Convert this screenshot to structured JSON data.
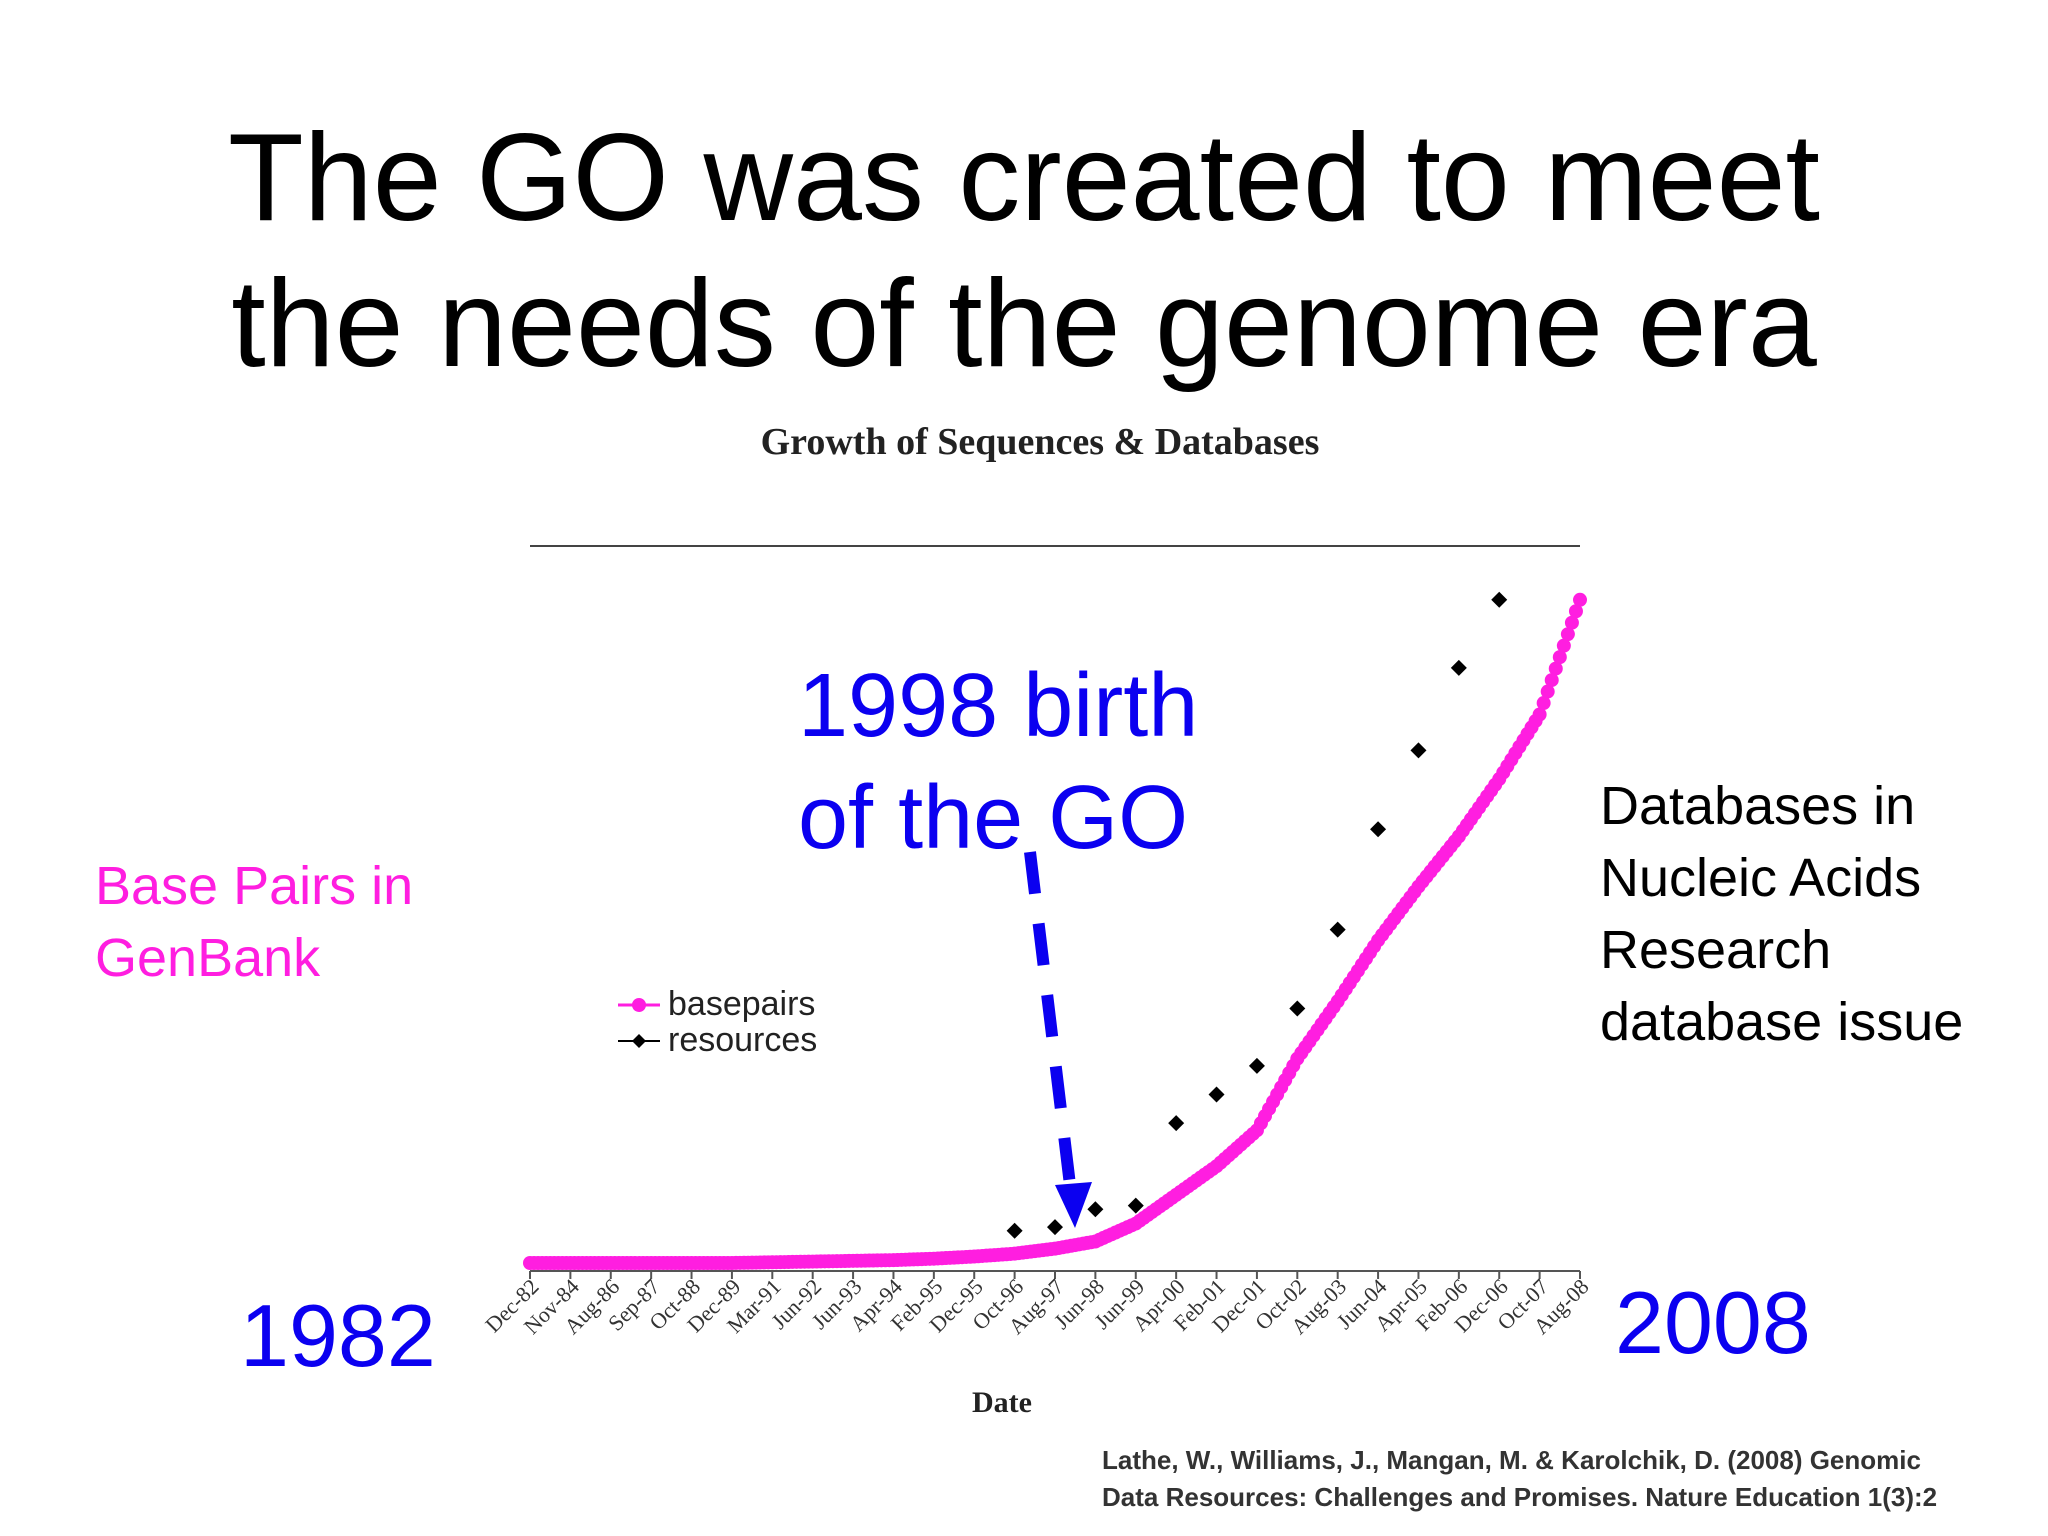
{
  "slide": {
    "title_lines": [
      "The GO was created to meet",
      "the needs of the genome era"
    ],
    "citation_lines": [
      "Lathe, W., Williams, J., Mangan, M. & Karolchik, D. (2008) Genomic",
      "Data Resources: Challenges and Promises. Nature Education 1(3):2"
    ]
  },
  "annotations": {
    "basepairs_note": [
      "Base Pairs in",
      "GenBank"
    ],
    "databases_note": [
      "Databases in",
      "Nucleic Acids",
      "Research",
      "database issue"
    ],
    "birth_note": [
      "1998 birth",
      "of the GO"
    ],
    "start_year": "1982",
    "end_year": "2008",
    "arrow_target": "Jun-98"
  },
  "colors": {
    "basepairs": "#ff1ee0",
    "resources": "#000000",
    "annotation_blue": "#0b00f0"
  },
  "chart_data": {
    "type": "line",
    "title": "Growth of Sequences & Databases",
    "xlabel": "Date",
    "ylabel": "",
    "categories": [
      "Dec-82",
      "Nov-84",
      "Aug-86",
      "Sep-87",
      "Oct-88",
      "Dec-89",
      "Mar-91",
      "Jun-92",
      "Jun-93",
      "Apr-94",
      "Feb-95",
      "Dec-95",
      "Oct-96",
      "Aug-97",
      "Jun-98",
      "Jun-99",
      "Apr-00",
      "Feb-01",
      "Dec-01",
      "Oct-02",
      "Aug-03",
      "Jun-04",
      "Apr-05",
      "Feb-06",
      "Dec-06",
      "Oct-07",
      "Aug-08"
    ],
    "ylim": [
      0,
      100
    ],
    "y_axis_ticks_shown": false,
    "grid": false,
    "legend_position": "left",
    "series": [
      {
        "name": "basepairs",
        "marker": "circle",
        "values": [
          0,
          0,
          0,
          0,
          0,
          0,
          0.1,
          0.2,
          0.3,
          0.4,
          0.6,
          0.9,
          1.3,
          2.0,
          3.0,
          5.5,
          9.5,
          13.5,
          18.5,
          28.5,
          36.5,
          45,
          52.5,
          59.5,
          67.5,
          76.5,
          92.5
        ]
      },
      {
        "name": "resources",
        "marker": "diamond",
        "values": [
          null,
          null,
          null,
          null,
          null,
          null,
          null,
          null,
          null,
          null,
          null,
          null,
          4.5,
          5.0,
          7.5,
          8.0,
          19.5,
          23.5,
          27.5,
          35.5,
          46.5,
          60.5,
          71.5,
          83.0,
          92.5,
          null,
          null
        ]
      }
    ]
  }
}
